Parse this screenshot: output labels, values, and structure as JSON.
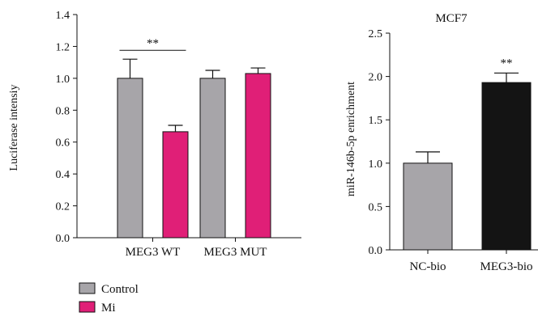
{
  "chart_data": [
    {
      "type": "bar",
      "title": "",
      "xlabel": "",
      "ylabel": "Luciferase intensiy",
      "ylim": [
        0,
        1.4
      ],
      "yticks": [
        "0.0",
        "0.2",
        "0.4",
        "0.6",
        "0.8",
        "1.0",
        "1.2",
        "1.4"
      ],
      "categories": [
        "MEG3 WT",
        "MEG3 MUT"
      ],
      "series": [
        {
          "name": "Control",
          "color": "#a7a5a9",
          "values": [
            1.0,
            1.0
          ],
          "errors": [
            0.12,
            0.05
          ]
        },
        {
          "name": "Mi",
          "color": "#e01f77",
          "values": [
            0.665,
            1.03
          ],
          "errors": [
            0.04,
            0.035
          ]
        }
      ],
      "annotations": [
        {
          "text": "**",
          "between": [
            "MEG3 WT:Control",
            "MEG3 WT:Mi"
          ]
        }
      ],
      "legend": {
        "placement": "bottom-left",
        "entries": [
          {
            "label": "Control",
            "color": "#a7a5a9"
          },
          {
            "label": "Mi",
            "color": "#e01f77"
          }
        ]
      },
      "grid": false
    },
    {
      "type": "bar",
      "title": "MCF7",
      "xlabel": "",
      "ylabel": "miR-146b-5p enrichment",
      "ylim": [
        0,
        2.5
      ],
      "yticks": [
        "0.0",
        "0.5",
        "1.0",
        "1.5",
        "2.0",
        "2.5"
      ],
      "categories": [
        "NC-bio",
        "MEG3-bio"
      ],
      "values": [
        1.0,
        1.93
      ],
      "errors": [
        0.13,
        0.11
      ],
      "colors": [
        "#a7a5a9",
        "#141414"
      ],
      "annotations": [
        {
          "text": "**",
          "category": "MEG3-bio"
        }
      ],
      "grid": false
    }
  ]
}
